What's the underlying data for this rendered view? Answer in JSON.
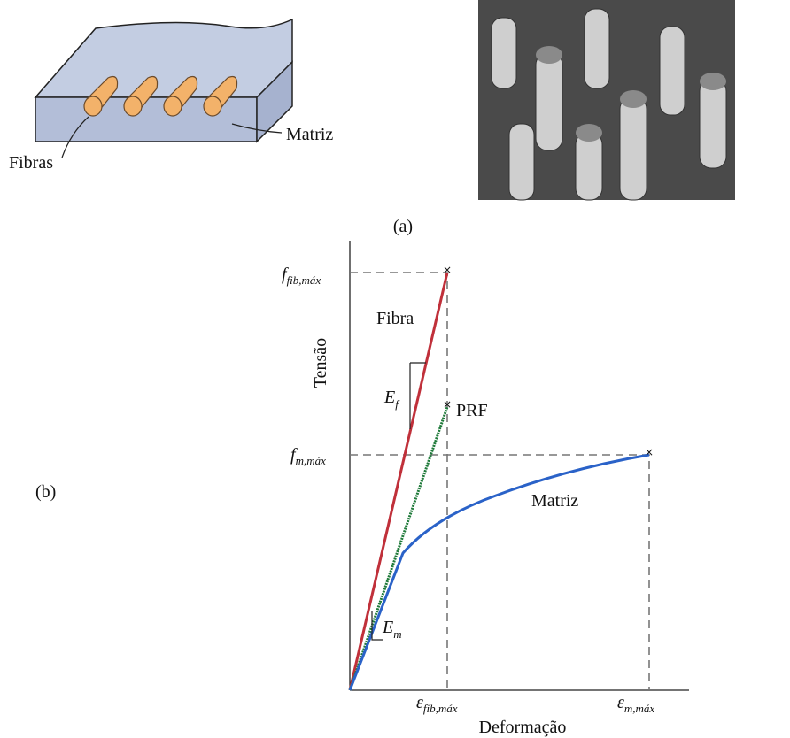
{
  "panel_a": {
    "fiber_label": "Fibras",
    "matrix_label": "Matriz",
    "caption": "(a)"
  },
  "panel_b": {
    "caption": "(b)",
    "y_axis_label": "Tensão",
    "x_axis_label": "Deformação",
    "fiber_curve_label": "Fibra",
    "frp_curve_label": "PRF",
    "matrix_curve_label": "Matriz",
    "fiber_modulus": {
      "base": "E",
      "sub": "f"
    },
    "matrix_modulus": {
      "base": "E",
      "sub": "m"
    },
    "fiber_strength": {
      "base": "f",
      "sub": "fib,máx"
    },
    "matrix_strength": {
      "base": "f",
      "sub": "m,máx"
    },
    "fiber_strain": {
      "base": "ε",
      "sub": "fib,máx"
    },
    "matrix_strain": {
      "base": "ε",
      "sub": "m,máx"
    }
  }
}
